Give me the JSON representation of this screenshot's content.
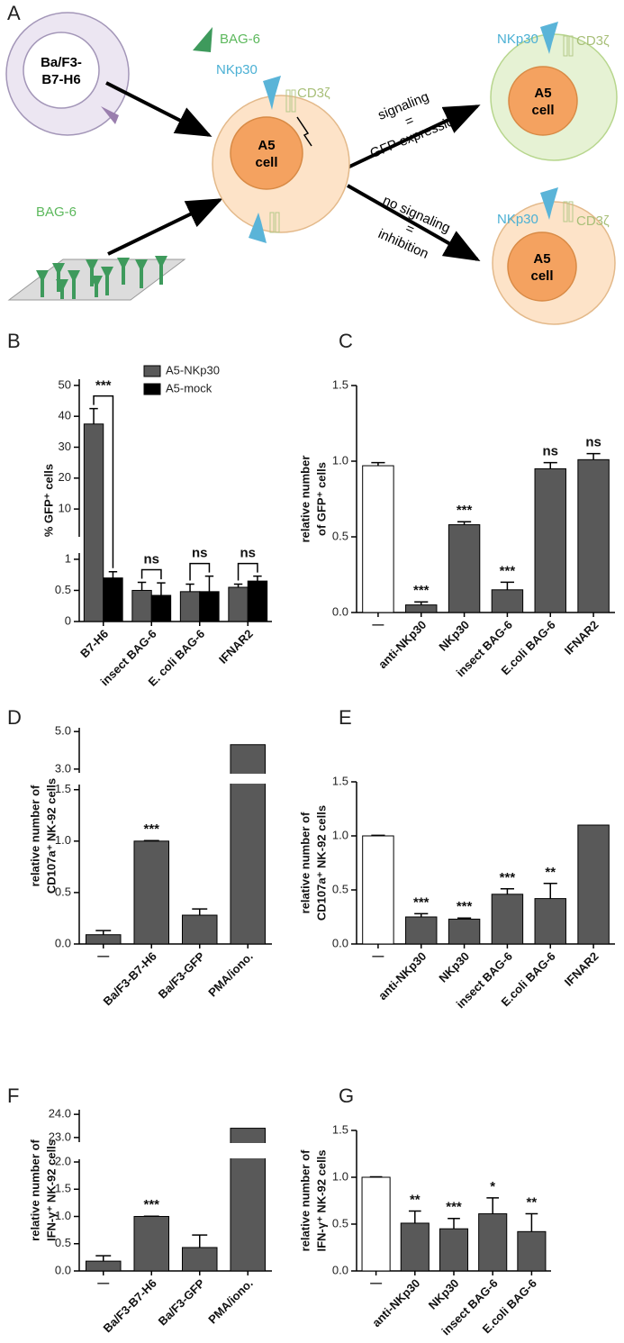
{
  "diagram": {
    "panel": "A",
    "ba_f3": [
      "Ba/F3-",
      "B7-H6"
    ],
    "bag6_top": "BAG-6",
    "nkp30": "NKp30",
    "cd3z": "CD3ζ",
    "a5_cell": [
      "A5",
      "cell"
    ],
    "bag6_plate": "BAG-6",
    "signaling": [
      "signaling",
      "=",
      "GFP expression"
    ],
    "no_signaling": [
      "no signaling",
      "=",
      "inhibition"
    ],
    "right_top": {
      "nkp30": "NKp30",
      "cd3z": "CD3ζ",
      "cell": [
        "A5",
        "cell"
      ]
    },
    "right_bottom": {
      "nkp30": "NKp30",
      "cd3z": "CD3ζ",
      "cell": [
        "A5",
        "cell"
      ]
    }
  },
  "chart_data": [
    {
      "type": "bar",
      "panel": "B",
      "y_label": [
        "% GFP⁺ cells"
      ],
      "categories": [
        "B7-H6",
        "insect BAG-6",
        "E. coli BAG-6",
        "IFNAR2"
      ],
      "series": [
        {
          "name": "A5-NKp30",
          "color": "#595959",
          "values": [
            37.5,
            0.5,
            0.48,
            0.55
          ],
          "errors": [
            5,
            0.13,
            0.12,
            0.05
          ]
        },
        {
          "name": "A5-mock",
          "color": "#000000",
          "values": [
            0.7,
            0.42,
            0.48,
            0.65
          ],
          "errors": [
            0.1,
            0.2,
            0.25,
            0.08
          ]
        }
      ],
      "significance": [
        "***",
        "ns",
        "ns",
        "ns"
      ],
      "segments": [
        {
          "ylim": [
            0,
            1.1
          ],
          "yticks": [
            0,
            0.5,
            1
          ]
        },
        {
          "ylim": [
            1,
            52
          ],
          "yticks": [
            10,
            20,
            30,
            40,
            50
          ]
        }
      ],
      "legend": "top-right"
    },
    {
      "type": "bar",
      "panel": "C",
      "y_label": [
        "relative number",
        "of GFP⁺ cells"
      ],
      "categories": [
        "—",
        "anti-NKp30",
        "NKp30",
        "insect BAG-6",
        "E.coli BAG-6",
        "IFNAR2"
      ],
      "values": [
        0.97,
        0.05,
        0.58,
        0.15,
        0.95,
        1.01
      ],
      "errors": [
        0.02,
        0.02,
        0.02,
        0.05,
        0.04,
        0.04
      ],
      "colors": [
        "#ffffff",
        "#595959",
        "#595959",
        "#595959",
        "#595959",
        "#595959"
      ],
      "significance": [
        null,
        "***",
        "***",
        "***",
        "ns",
        "ns"
      ],
      "ylim": [
        0,
        1.5
      ],
      "yticks": [
        {
          "value": 0,
          "label": "0.0"
        },
        0.5,
        {
          "value": 1,
          "label": "1.0"
        },
        1.5
      ]
    },
    {
      "type": "bar",
      "panel": "D",
      "y_label": [
        "relative number of",
        "CD107a⁺ NK-92 cells"
      ],
      "categories": [
        "—",
        "Ba/F3-B7-H6",
        "Ba/F3-GFP",
        "PMA/iono."
      ],
      "values": [
        0.09,
        1.0,
        0.28,
        4.3
      ],
      "errors": [
        0.04,
        0.005,
        0.06,
        null
      ],
      "colors": [
        "#595959",
        "#595959",
        "#595959",
        "#595959"
      ],
      "significance": [
        null,
        "***",
        null,
        null
      ],
      "segments": [
        {
          "ylim": [
            0,
            1.55
          ],
          "yticks": [
            {
              "value": 0,
              "label": "0.0"
            },
            0.5,
            {
              "value": 1,
              "label": "1.0"
            },
            1.5
          ]
        },
        {
          "ylim": [
            2.8,
            5.2
          ],
          "yticks": [
            {
              "value": 3,
              "label": "3.0"
            },
            {
              "value": 5,
              "label": "5.0"
            }
          ]
        }
      ]
    },
    {
      "type": "bar",
      "panel": "E",
      "y_label": [
        "relative number of",
        "CD107a⁺ NK-92 cells"
      ],
      "categories": [
        "—",
        "anti-NKp30",
        "NKp30",
        "insect BAG-6",
        "E.coli BAG-6",
        "IFNAR2"
      ],
      "values": [
        1.0,
        0.25,
        0.23,
        0.46,
        0.42,
        1.1
      ],
      "errors": [
        0.005,
        0.03,
        0.01,
        0.05,
        0.14,
        null
      ],
      "colors": [
        "#ffffff",
        "#595959",
        "#595959",
        "#595959",
        "#595959",
        "#595959"
      ],
      "significance": [
        null,
        "***",
        "***",
        "***",
        "**",
        null
      ],
      "ylim": [
        0,
        1.5
      ],
      "yticks": [
        {
          "value": 0,
          "label": "0.0"
        },
        0.5,
        {
          "value": 1,
          "label": "1.0"
        },
        1.5
      ]
    },
    {
      "type": "bar",
      "panel": "F",
      "y_label": [
        "relative number of",
        "IFN-γ⁺ NK-92 cells"
      ],
      "categories": [
        "—",
        "Ba/F3-B7-H6",
        "Ba/F3-GFP",
        "PMA/iono."
      ],
      "values": [
        0.18,
        1.0,
        0.43,
        23.4
      ],
      "errors": [
        0.1,
        0.005,
        0.23,
        null
      ],
      "colors": [
        "#595959",
        "#595959",
        "#595959",
        "#595959"
      ],
      "significance": [
        null,
        "***",
        null,
        null
      ],
      "segments": [
        {
          "ylim": [
            0,
            2.05
          ],
          "yticks": [
            {
              "value": 0,
              "label": "0.0"
            },
            0.5,
            {
              "value": 1,
              "label": "1.0"
            },
            1.5,
            {
              "value": 2,
              "label": "2.0"
            }
          ]
        },
        {
          "ylim": [
            22.8,
            24.2
          ],
          "yticks": [
            {
              "value": 23,
              "label": "23.0"
            },
            {
              "value": 24,
              "label": "24.0"
            }
          ]
        }
      ]
    },
    {
      "type": "bar",
      "panel": "G",
      "y_label": [
        "relative number of",
        "IFN-γ⁺ NK-92 cells"
      ],
      "categories": [
        "—",
        "anti-NKp30",
        "NKp30",
        "insect BAG-6",
        "E.coli BAG-6"
      ],
      "values": [
        1.0,
        0.51,
        0.45,
        0.61,
        0.42
      ],
      "errors": [
        0.005,
        0.13,
        0.11,
        0.17,
        0.19
      ],
      "colors": [
        "#ffffff",
        "#595959",
        "#595959",
        "#595959",
        "#595959"
      ],
      "significance": [
        null,
        "**",
        "***",
        "*",
        "**"
      ],
      "ylim": [
        0,
        1.5
      ],
      "yticks": [
        {
          "value": 0,
          "label": "0.0"
        },
        0.5,
        {
          "value": 1,
          "label": "1.0"
        },
        1.5
      ]
    }
  ]
}
